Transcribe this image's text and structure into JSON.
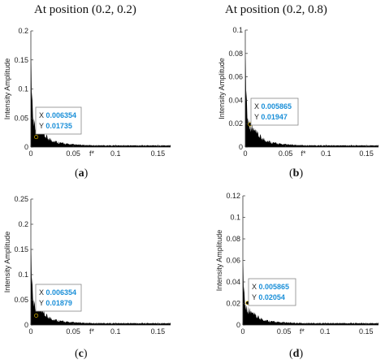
{
  "headers": {
    "left": "At position (0.2, 0.2)",
    "right": "At position (0.2, 0.8)"
  },
  "colors": {
    "fill": "#000000",
    "axis": "#333333",
    "tip_value": "#1a8fd8"
  },
  "chart_data": [
    {
      "type": "area",
      "panel_label": "a",
      "ylabel": "Intensity Amplitude",
      "xlabel": "f*",
      "xlim": [
        0,
        0.165
      ],
      "ylim": [
        0,
        0.2
      ],
      "xticks": [
        "0",
        "0.05",
        "0.1",
        "0.15"
      ],
      "yticks": [
        "0",
        "0.05",
        "0.1",
        "0.15",
        "0.2"
      ],
      "peak": 0.18,
      "datatip": {
        "x_label": "X",
        "y_label": "Y",
        "x": "0.006354",
        "y": "0.01735"
      }
    },
    {
      "type": "area",
      "panel_label": "b",
      "ylabel": "Intensity Amplitude",
      "xlabel": "f*",
      "xlim": [
        0,
        0.165
      ],
      "ylim": [
        0,
        0.1
      ],
      "xticks": [
        "0",
        "0.05",
        "0.1",
        "0.15"
      ],
      "yticks": [
        "0",
        "0.02",
        "0.04",
        "0.06",
        "0.08",
        "0.1"
      ],
      "peak": 0.092,
      "datatip": {
        "x_label": "X",
        "y_label": "Y",
        "x": "0.005865",
        "y": "0.01947"
      }
    },
    {
      "type": "area",
      "panel_label": "c",
      "ylabel": "Intensity Amplitude",
      "xlabel": "f*",
      "xlim": [
        0,
        0.165
      ],
      "ylim": [
        0,
        0.25
      ],
      "xticks": [
        "0",
        "0.05",
        "0.1",
        "0.15"
      ],
      "yticks": [
        "0",
        "0.05",
        "0.1",
        "0.15",
        "0.2",
        "0.25"
      ],
      "peak": 0.18,
      "datatip": {
        "x_label": "X",
        "y_label": "Y",
        "x": "0.006354",
        "y": "0.01879"
      }
    },
    {
      "type": "area",
      "panel_label": "d",
      "ylabel": "Intensity Amplitude",
      "xlabel": "f*",
      "xlim": [
        0,
        0.165
      ],
      "ylim": [
        0,
        0.12
      ],
      "xticks": [
        "0",
        "0.05",
        "0.1",
        "0.15"
      ],
      "yticks": [
        "0",
        "0.02",
        "0.04",
        "0.06",
        "0.08",
        "0.1",
        "0.12"
      ],
      "peak": 0.068,
      "datatip": {
        "x_label": "X",
        "y_label": "Y",
        "x": "0.005865",
        "y": "0.02054"
      }
    }
  ]
}
